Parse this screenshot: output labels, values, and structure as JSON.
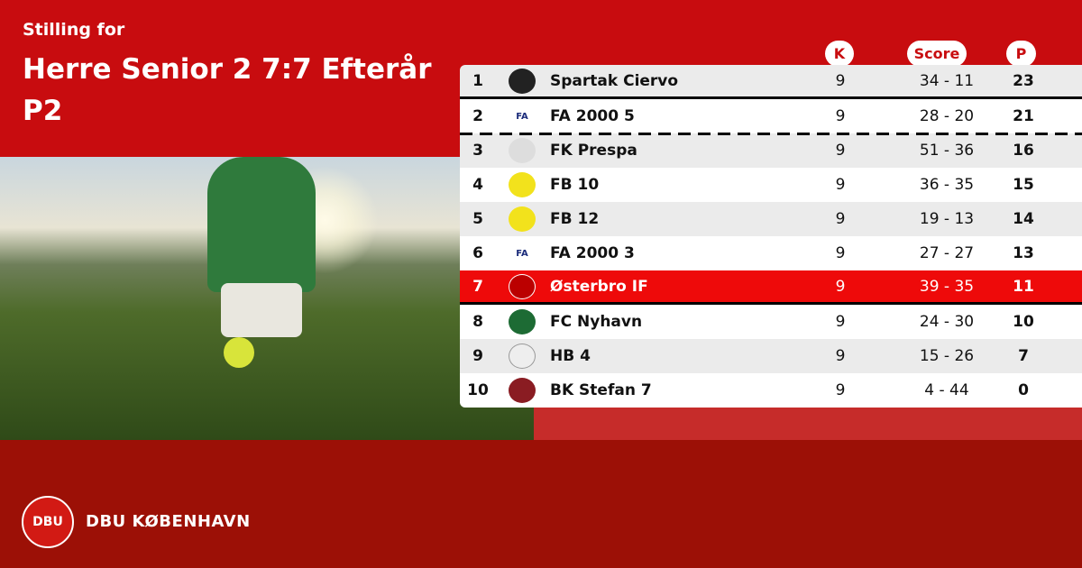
{
  "header": {
    "subtitle": "Stilling for",
    "title": "Herre Senior 2 7:7 Efterår P2"
  },
  "columns": {
    "k": "K",
    "score": "Score",
    "p": "P"
  },
  "rows": [
    {
      "pos": "1",
      "team": "Spartak Ciervo",
      "k": "9",
      "score": "34 - 11",
      "p": "23",
      "logo": "deer-shield-icon"
    },
    {
      "pos": "2",
      "team": "FA 2000 5",
      "k": "9",
      "score": "28 - 20",
      "p": "21",
      "logo": "fa-logo-icon"
    },
    {
      "pos": "3",
      "team": "FK Prespa",
      "k": "9",
      "score": "51 - 36",
      "p": "16",
      "logo": "crest-icon"
    },
    {
      "pos": "4",
      "team": "FB 10",
      "k": "9",
      "score": "36 - 35",
      "p": "15",
      "logo": "fb-yellow-logo-icon"
    },
    {
      "pos": "5",
      "team": "FB 12",
      "k": "9",
      "score": "19 - 13",
      "p": "14",
      "logo": "fb-yellow-logo-icon"
    },
    {
      "pos": "6",
      "team": "FA 2000 3",
      "k": "9",
      "score": "27 - 27",
      "p": "13",
      "logo": "fa-logo-icon"
    },
    {
      "pos": "7",
      "team": "Østerbro IF",
      "k": "9",
      "score": "39 - 35",
      "p": "11",
      "logo": "osterbro-logo-icon"
    },
    {
      "pos": "8",
      "team": "FC Nyhavn",
      "k": "9",
      "score": "24 - 30",
      "p": "10",
      "logo": "green-crest-icon"
    },
    {
      "pos": "9",
      "team": "HB 4",
      "k": "9",
      "score": "15 - 26",
      "p": "7",
      "logo": "hb-logo-icon"
    },
    {
      "pos": "10",
      "team": "BK Stefan 7",
      "k": "9",
      "score": "4 - 44",
      "p": "0",
      "logo": "maroon-crest-icon"
    }
  ],
  "highlight_color": "#ee0a0a",
  "footer": {
    "brand": "DBU KØBENHAVN",
    "logo_text": "DBU"
  }
}
